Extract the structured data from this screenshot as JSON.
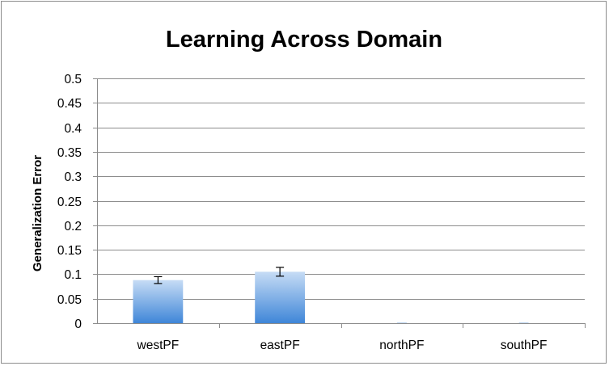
{
  "chart_data": {
    "type": "bar",
    "title": "Learning Across Domain",
    "xlabel": "",
    "ylabel": "Generalization Error",
    "categories": [
      "westPF",
      "eastPF",
      "northPF",
      "southPF"
    ],
    "values": [
      0.088,
      0.105,
      0,
      0
    ],
    "error": [
      0.007,
      0.009,
      0,
      0
    ],
    "ylim": [
      0,
      0.5
    ],
    "yticks": [
      "0",
      "0.05",
      "0.1",
      "0.15",
      "0.2",
      "0.25",
      "0.3",
      "0.35",
      "0.4",
      "0.45",
      "0.5"
    ],
    "grid": true,
    "legend": "none",
    "colors": {
      "bar_top": "#c6dcf5",
      "bar_bottom": "#3f86d8",
      "grid": "#8c8c8c",
      "axis": "#8c8c8c"
    }
  }
}
